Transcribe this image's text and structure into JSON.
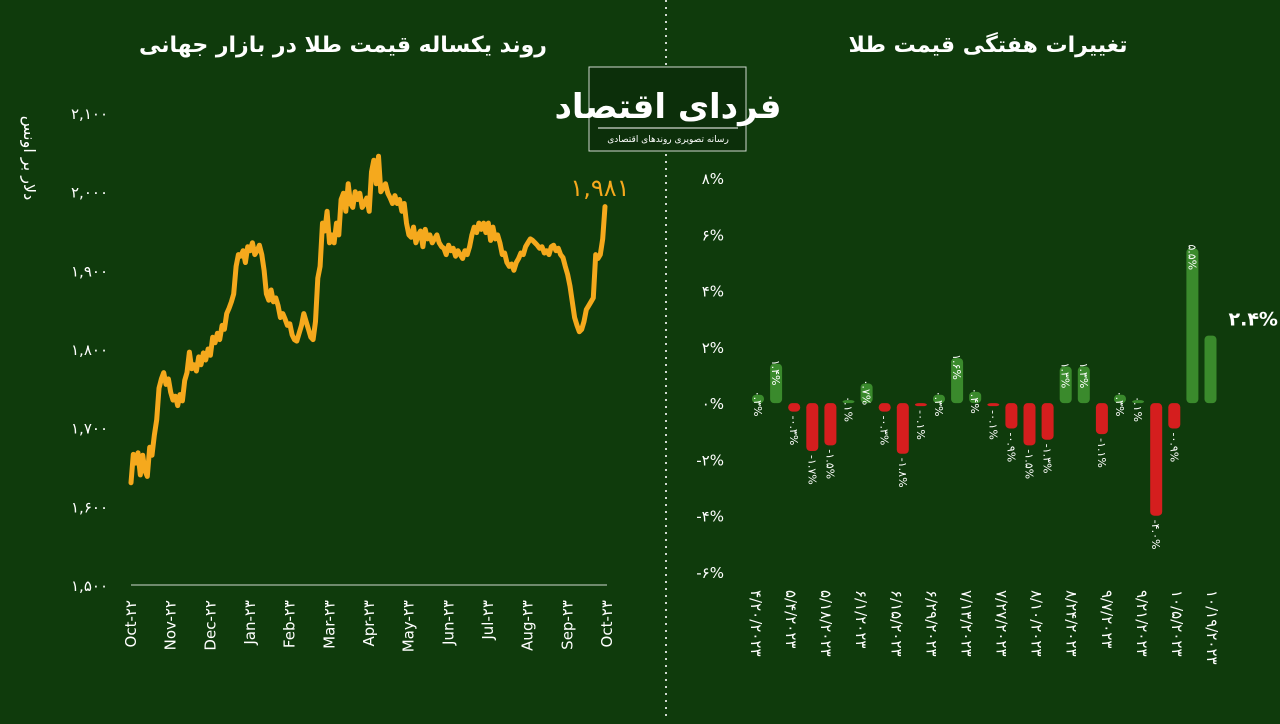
{
  "logo": {
    "name": "فردای اقتصاد",
    "tagline": "رسانه تصویری روندهای اقتصادی"
  },
  "colors": {
    "background": "#0f3b0c",
    "line": "#f5a91d",
    "positive": "#3a8a2c",
    "negative": "#d51e1e",
    "divider": "#cfd8cf"
  },
  "chart_data": [
    {
      "type": "line",
      "title": "روند یکساله قیمت طلا در بازار جهانی",
      "ylabel": "دلار بر اونس",
      "ylim": [
        1500,
        2100
      ],
      "yticks": [
        1500,
        1600,
        1700,
        1800,
        1900,
        2000,
        2100
      ],
      "ytick_labels": [
        "۱,۵۰۰",
        "۱,۶۰۰",
        "۱,۷۰۰",
        "۱,۸۰۰",
        "۱,۹۰۰",
        "۲,۰۰۰",
        "۲,۱۰۰"
      ],
      "xtick_labels": [
        "Oct-۲۲",
        "Nov-۲۲",
        "Dec-۲۲",
        "Jan-۲۳",
        "Feb-۲۳",
        "Mar-۲۳",
        "Apr-۲۳",
        "May-۲۳",
        "Jun-۲۳",
        "Jul-۲۳",
        "Aug-۲۳",
        "Sep-۲۳",
        "Oct-۲۳"
      ],
      "last_value_label": "۱,۹۸۱",
      "series": [
        {
          "values": [
            1630,
            1666,
            1655,
            1668,
            1640,
            1665,
            1645,
            1638,
            1675,
            1665,
            1690,
            1710,
            1750,
            1762,
            1770,
            1755,
            1762,
            1745,
            1735,
            1740,
            1728,
            1742,
            1734,
            1760,
            1770,
            1796,
            1775,
            1780,
            1772,
            1790,
            1780,
            1795,
            1786,
            1800,
            1792,
            1815,
            1808,
            1820,
            1812,
            1830,
            1825,
            1845,
            1852,
            1860,
            1870,
            1905,
            1920,
            1918,
            1925,
            1910,
            1930,
            1925,
            1935,
            1920,
            1925,
            1932,
            1920,
            1900,
            1870,
            1862,
            1875,
            1860,
            1865,
            1855,
            1840,
            1845,
            1838,
            1830,
            1832,
            1818,
            1812,
            1810,
            1820,
            1830,
            1845,
            1835,
            1825,
            1815,
            1812,
            1835,
            1890,
            1905,
            1960,
            1950,
            1975,
            1935,
            1945,
            1935,
            1960,
            1945,
            1990,
            1998,
            1975,
            2010,
            1985,
            1980,
            2000,
            1990,
            1998,
            1980,
            1985,
            1992,
            1975,
            2025,
            2040,
            2010,
            2045,
            2000,
            2005,
            2010,
            1998,
            1992,
            1985,
            1995,
            1985,
            1990,
            1975,
            1985,
            1960,
            1945,
            1942,
            1955,
            1935,
            1945,
            1950,
            1930,
            1952,
            1940,
            1945,
            1935,
            1940,
            1945,
            1935,
            1930,
            1928,
            1920,
            1932,
            1925,
            1928,
            1918,
            1925,
            1920,
            1915,
            1925,
            1920,
            1930,
            1945,
            1955,
            1948,
            1960,
            1952,
            1960,
            1948,
            1960,
            1938,
            1955,
            1940,
            1945,
            1935,
            1920,
            1922,
            1910,
            1905,
            1908,
            1900,
            1910,
            1915,
            1922,
            1920,
            1930,
            1935,
            1940,
            1938,
            1935,
            1932,
            1928,
            1930,
            1922,
            1925,
            1920,
            1930,
            1932,
            1925,
            1928,
            1920,
            1916,
            1905,
            1895,
            1880,
            1860,
            1840,
            1830,
            1822,
            1825,
            1835,
            1850,
            1855,
            1860,
            1865,
            1920,
            1915,
            1920,
            1940,
            1981
          ]
        }
      ]
    },
    {
      "type": "bar",
      "title": "تغییرات هفتگی قیمت طلا",
      "ylim": [
        -6,
        8
      ],
      "yticks": [
        -6,
        -4,
        -2,
        0,
        2,
        4,
        6,
        8
      ],
      "ytick_labels": [
        "-۶%",
        "-۴%",
        "-۲%",
        "۰%",
        "۲%",
        "۴%",
        "۶%",
        "۸%"
      ],
      "xtick_labels": [
        "۴/۲۰/۲۰۲۳",
        "۵/۴/۲۰۲۳",
        "۵/۱۸/۲۰۲۳",
        "۶/۱/۲۰۲۳",
        "۶/۱۵/۲۰۲۳",
        "۶/۲۹/۲۰۲۳",
        "۷/۱۳/۲۰۲۳",
        "۷/۲۷/۲۰۲۳",
        "۸/۱۰/۲۰۲۳",
        "۸/۲۴/۲۰۲۳",
        "۹/۷/۲۰۲۳",
        "۹/۲۱/۲۰۲۳",
        "۱۰/۵/۲۰۲۳",
        "۱۰/۱۹/۲۰۲۳"
      ],
      "values": [
        0.3,
        1.4,
        -0.3,
        -1.7,
        -1.5,
        0.1,
        0.7,
        -0.3,
        -1.8,
        -0.1,
        0.3,
        1.6,
        0.4,
        -0.1,
        -0.9,
        -1.5,
        -1.3,
        1.3,
        1.3,
        -1.1,
        0.3,
        0.1,
        -4.0,
        -0.9,
        5.5,
        2.4
      ],
      "bar_labels": [
        "۰.۳%",
        "۱.۴%",
        "-۰.۳%",
        "-۱.۷%",
        "-۱.۵%",
        "۰.۱%",
        "۰.۷%",
        "-۰.۳%",
        "-۱.۸%",
        "-۰.۱%",
        "۰.۳%",
        "۱.۶%",
        "۰.۴%",
        "-۰.۱%",
        "-۰.۹%",
        "-۱.۵%",
        "-۱.۳%",
        "۱.۳%",
        "۱.۳%",
        "-۱.۱%",
        "۰.۳%",
        "۰.۱%",
        "-۴.۰%",
        "-۰.۹%",
        "۵.۵%",
        "۲.۴%"
      ]
    }
  ]
}
